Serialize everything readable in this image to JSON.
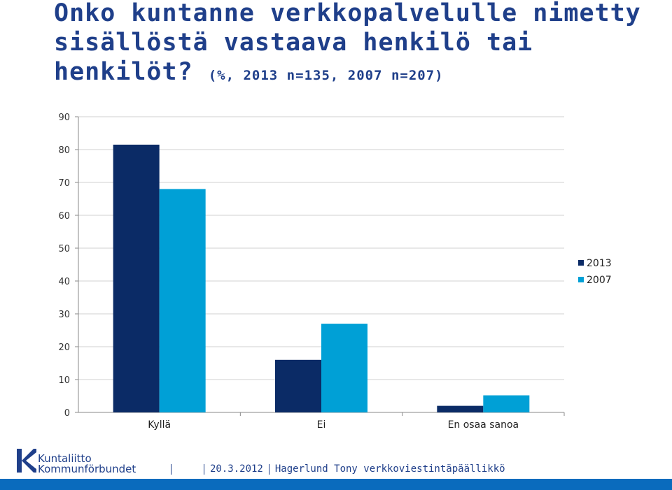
{
  "title": {
    "main": "Onko kuntanne verkkopalvelulle nimetty sisällöstä vastaava henkilö tai henkilöt?",
    "subtitle": "(%, 2013 n=135, 2007 n=207)"
  },
  "chart_data": {
    "type": "bar",
    "categories": [
      "Kyllä",
      "Ei",
      "En osaa sanoa"
    ],
    "series": [
      {
        "name": "2013",
        "values": [
          81.5,
          16,
          2
        ],
        "color": "#0b2b66"
      },
      {
        "name": "2007",
        "values": [
          68,
          27,
          5.2
        ],
        "color": "#00a0d6"
      }
    ],
    "ylim": [
      0,
      90
    ],
    "yticks": [
      "0",
      "10",
      "20",
      "30",
      "40",
      "50",
      "60",
      "70",
      "80",
      "90"
    ],
    "grid": true,
    "legend_position": "right"
  },
  "footer": {
    "logo_line1": "Kuntaliitto",
    "logo_line2": "Kommunförbundet",
    "date": "20.3.2012",
    "author": "Hagerlund Tony verkkoviestintäpäällikkö"
  }
}
